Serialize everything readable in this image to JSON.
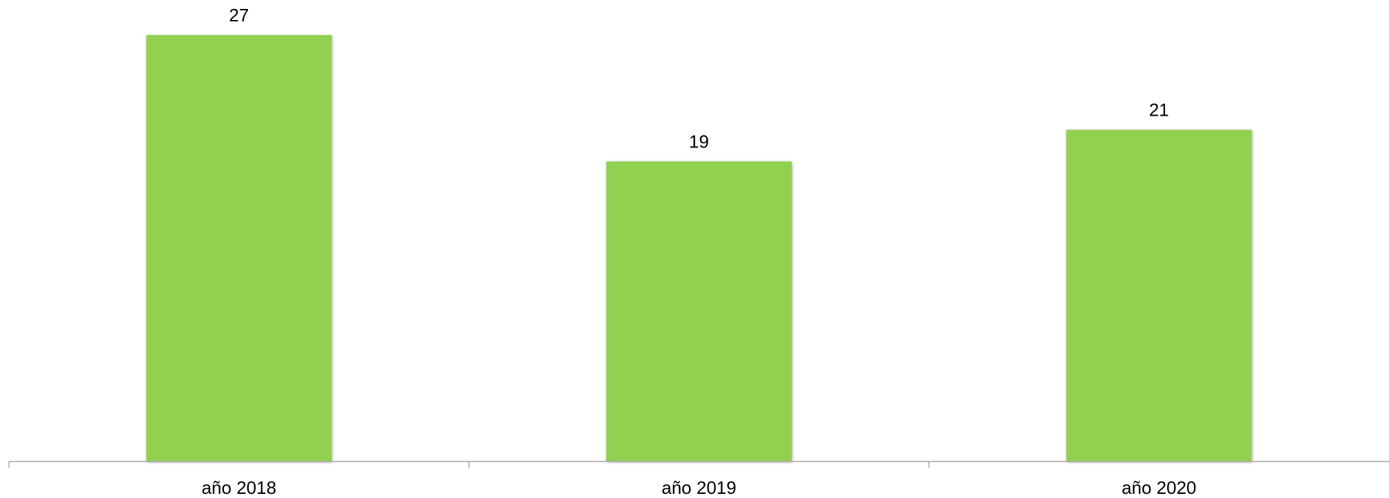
{
  "chart_data": {
    "type": "bar",
    "title": "",
    "xlabel": "",
    "ylabel": "",
    "categories": [
      "año 2018",
      "año 2019",
      "año 2020"
    ],
    "values": [
      27,
      19,
      21
    ],
    "ylim": [
      0,
      27
    ],
    "grid": false,
    "legend": "none",
    "data_labels": [
      "27",
      "19",
      "21"
    ]
  },
  "colors": {
    "bar": "#92d050",
    "axis": "#a6a6a6",
    "text": "#000000"
  }
}
